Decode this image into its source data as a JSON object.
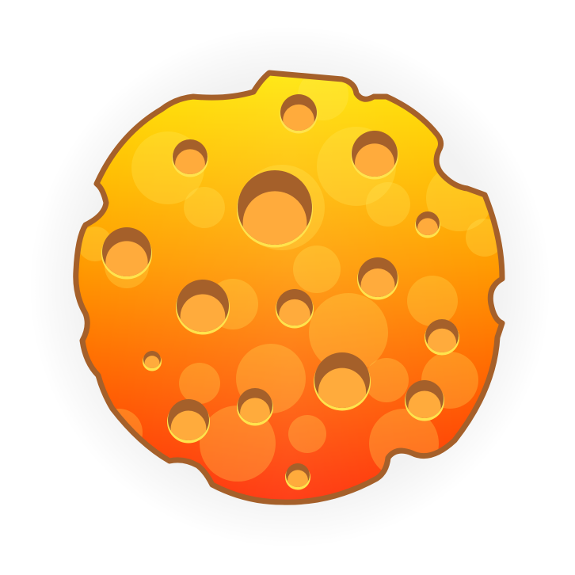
{
  "image": {
    "subject": "cheese-planet-icon",
    "colors": {
      "background": "#ffffff",
      "outline": "#a5602a",
      "gradient_top": "#ffe600",
      "gradient_middle": "#ff9a00",
      "gradient_bottom": "#ff2a00",
      "crater_fill": "#ffab3c",
      "crater_shadow": "#a5602a",
      "crater_rim_highlight": "#ffe34d",
      "bubble_fill": "#ffe95c"
    }
  }
}
